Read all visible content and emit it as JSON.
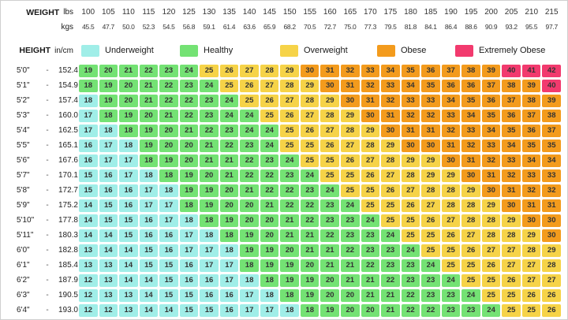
{
  "header": {
    "weight_label": "WEIGHT",
    "lbs_label": "lbs",
    "kgs_label": "kgs",
    "height_label": "HEIGHT",
    "height_unit_label": "in/cm",
    "separator": "-"
  },
  "chart_data": {
    "type": "heatmap",
    "weights_lbs": [
      100,
      105,
      110,
      115,
      120,
      125,
      130,
      135,
      140,
      145,
      150,
      155,
      160,
      165,
      170,
      175,
      180,
      185,
      190,
      195,
      200,
      205,
      210,
      215
    ],
    "weights_kgs": [
      "45.5",
      "47.7",
      "50.0",
      "52.3",
      "54.5",
      "56.8",
      "59.1",
      "61.4",
      "63.6",
      "65.9",
      "68.2",
      "70.5",
      "72.7",
      "75.0",
      "77.3",
      "79.5",
      "81.8",
      "84.1",
      "86.4",
      "88.6",
      "90.9",
      "93.2",
      "95.5",
      "97.7"
    ],
    "categories": [
      {
        "name": "Underweight",
        "color": "#A0EEE8",
        "bmi_lt": 18.5
      },
      {
        "name": "Healthy",
        "color": "#74E274",
        "bmi_lt": 25
      },
      {
        "name": "Overweight",
        "color": "#F6D348",
        "bmi_lt": 30
      },
      {
        "name": "Obese",
        "color": "#F39B1D",
        "bmi_lt": 40
      },
      {
        "name": "Extremely Obese",
        "color": "#F23A6E",
        "bmi_lt": 999
      }
    ],
    "rows": [
      {
        "ftin": "5'0\"",
        "cm": "152.4",
        "bmi": [
          19,
          20,
          21,
          22,
          23,
          24,
          25,
          26,
          27,
          28,
          29,
          30,
          31,
          32,
          33,
          34,
          35,
          36,
          37,
          38,
          39,
          40,
          41,
          42
        ]
      },
      {
        "ftin": "5'1\"",
        "cm": "154.9",
        "bmi": [
          18,
          19,
          20,
          21,
          22,
          23,
          24,
          25,
          26,
          27,
          28,
          29,
          30,
          31,
          32,
          33,
          34,
          35,
          36,
          36,
          37,
          38,
          39,
          40
        ]
      },
      {
        "ftin": "5'2\"",
        "cm": "157.4",
        "bmi": [
          18,
          19,
          20,
          21,
          22,
          22,
          23,
          24,
          25,
          26,
          27,
          28,
          29,
          30,
          31,
          32,
          33,
          33,
          34,
          35,
          36,
          37,
          38,
          39
        ]
      },
      {
        "ftin": "5'3\"",
        "cm": "160.0",
        "bmi": [
          17,
          18,
          19,
          20,
          21,
          22,
          23,
          24,
          24,
          25,
          26,
          27,
          28,
          29,
          30,
          31,
          32,
          32,
          33,
          34,
          35,
          36,
          37,
          38
        ]
      },
      {
        "ftin": "5'4\"",
        "cm": "162.5",
        "bmi": [
          17,
          18,
          18,
          19,
          20,
          21,
          22,
          23,
          24,
          24,
          25,
          26,
          27,
          28,
          29,
          30,
          31,
          31,
          32,
          33,
          34,
          35,
          36,
          37
        ]
      },
      {
        "ftin": "5'5\"",
        "cm": "165.1",
        "bmi": [
          16,
          17,
          18,
          19,
          20,
          20,
          21,
          22,
          23,
          24,
          25,
          25,
          26,
          27,
          28,
          29,
          30,
          30,
          31,
          32,
          33,
          34,
          35,
          35
        ]
      },
      {
        "ftin": "5'6\"",
        "cm": "167.6",
        "bmi": [
          16,
          17,
          17,
          18,
          19,
          20,
          21,
          21,
          22,
          23,
          24,
          25,
          25,
          26,
          27,
          28,
          29,
          29,
          30,
          31,
          32,
          33,
          34,
          34
        ]
      },
      {
        "ftin": "5'7\"",
        "cm": "170.1",
        "bmi": [
          15,
          16,
          17,
          18,
          18,
          19,
          20,
          21,
          22,
          22,
          23,
          24,
          25,
          25,
          26,
          27,
          28,
          29,
          29,
          30,
          31,
          32,
          33,
          33
        ]
      },
      {
        "ftin": "5'8\"",
        "cm": "172.7",
        "bmi": [
          15,
          16,
          16,
          17,
          18,
          19,
          19,
          20,
          21,
          22,
          22,
          23,
          24,
          25,
          25,
          26,
          27,
          28,
          28,
          29,
          30,
          31,
          32,
          32
        ]
      },
      {
        "ftin": "5'9\"",
        "cm": "175.2",
        "bmi": [
          14,
          15,
          16,
          17,
          17,
          18,
          19,
          20,
          20,
          21,
          22,
          22,
          23,
          24,
          25,
          25,
          26,
          27,
          28,
          28,
          29,
          30,
          31,
          31
        ]
      },
      {
        "ftin": "5'10\"",
        "cm": "177.8",
        "bmi": [
          14,
          15,
          15,
          16,
          17,
          18,
          18,
          19,
          20,
          20,
          21,
          22,
          23,
          23,
          24,
          25,
          25,
          26,
          27,
          28,
          28,
          29,
          30,
          30
        ]
      },
      {
        "ftin": "5'11\"",
        "cm": "180.3",
        "bmi": [
          14,
          14,
          15,
          16,
          16,
          17,
          18,
          18,
          19,
          20,
          21,
          21,
          22,
          23,
          23,
          24,
          25,
          25,
          26,
          27,
          28,
          28,
          29,
          30
        ]
      },
      {
        "ftin": "6'0\"",
        "cm": "182.8",
        "bmi": [
          13,
          14,
          14,
          15,
          16,
          17,
          17,
          18,
          19,
          19,
          20,
          21,
          21,
          22,
          23,
          23,
          24,
          25,
          25,
          26,
          27,
          27,
          28,
          29
        ]
      },
      {
        "ftin": "6'1\"",
        "cm": "185.4",
        "bmi": [
          13,
          13,
          14,
          15,
          15,
          16,
          17,
          17,
          18,
          19,
          19,
          20,
          21,
          21,
          22,
          23,
          23,
          24,
          25,
          25,
          26,
          27,
          27,
          28
        ]
      },
      {
        "ftin": "6'2\"",
        "cm": "187.9",
        "bmi": [
          12,
          13,
          14,
          14,
          15,
          16,
          16,
          17,
          18,
          18,
          19,
          19,
          20,
          21,
          21,
          22,
          23,
          23,
          24,
          25,
          25,
          26,
          27,
          27
        ]
      },
      {
        "ftin": "6'3\"",
        "cm": "190.5",
        "bmi": [
          12,
          13,
          13,
          14,
          15,
          15,
          16,
          16,
          17,
          18,
          18,
          19,
          20,
          20,
          21,
          21,
          22,
          23,
          23,
          24,
          25,
          25,
          26,
          26
        ]
      },
      {
        "ftin": "6'4\"",
        "cm": "193.0",
        "bmi": [
          12,
          12,
          13,
          14,
          14,
          15,
          15,
          16,
          17,
          17,
          18,
          18,
          19,
          20,
          20,
          21,
          22,
          22,
          23,
          23,
          24,
          25,
          25,
          26
        ]
      }
    ]
  }
}
